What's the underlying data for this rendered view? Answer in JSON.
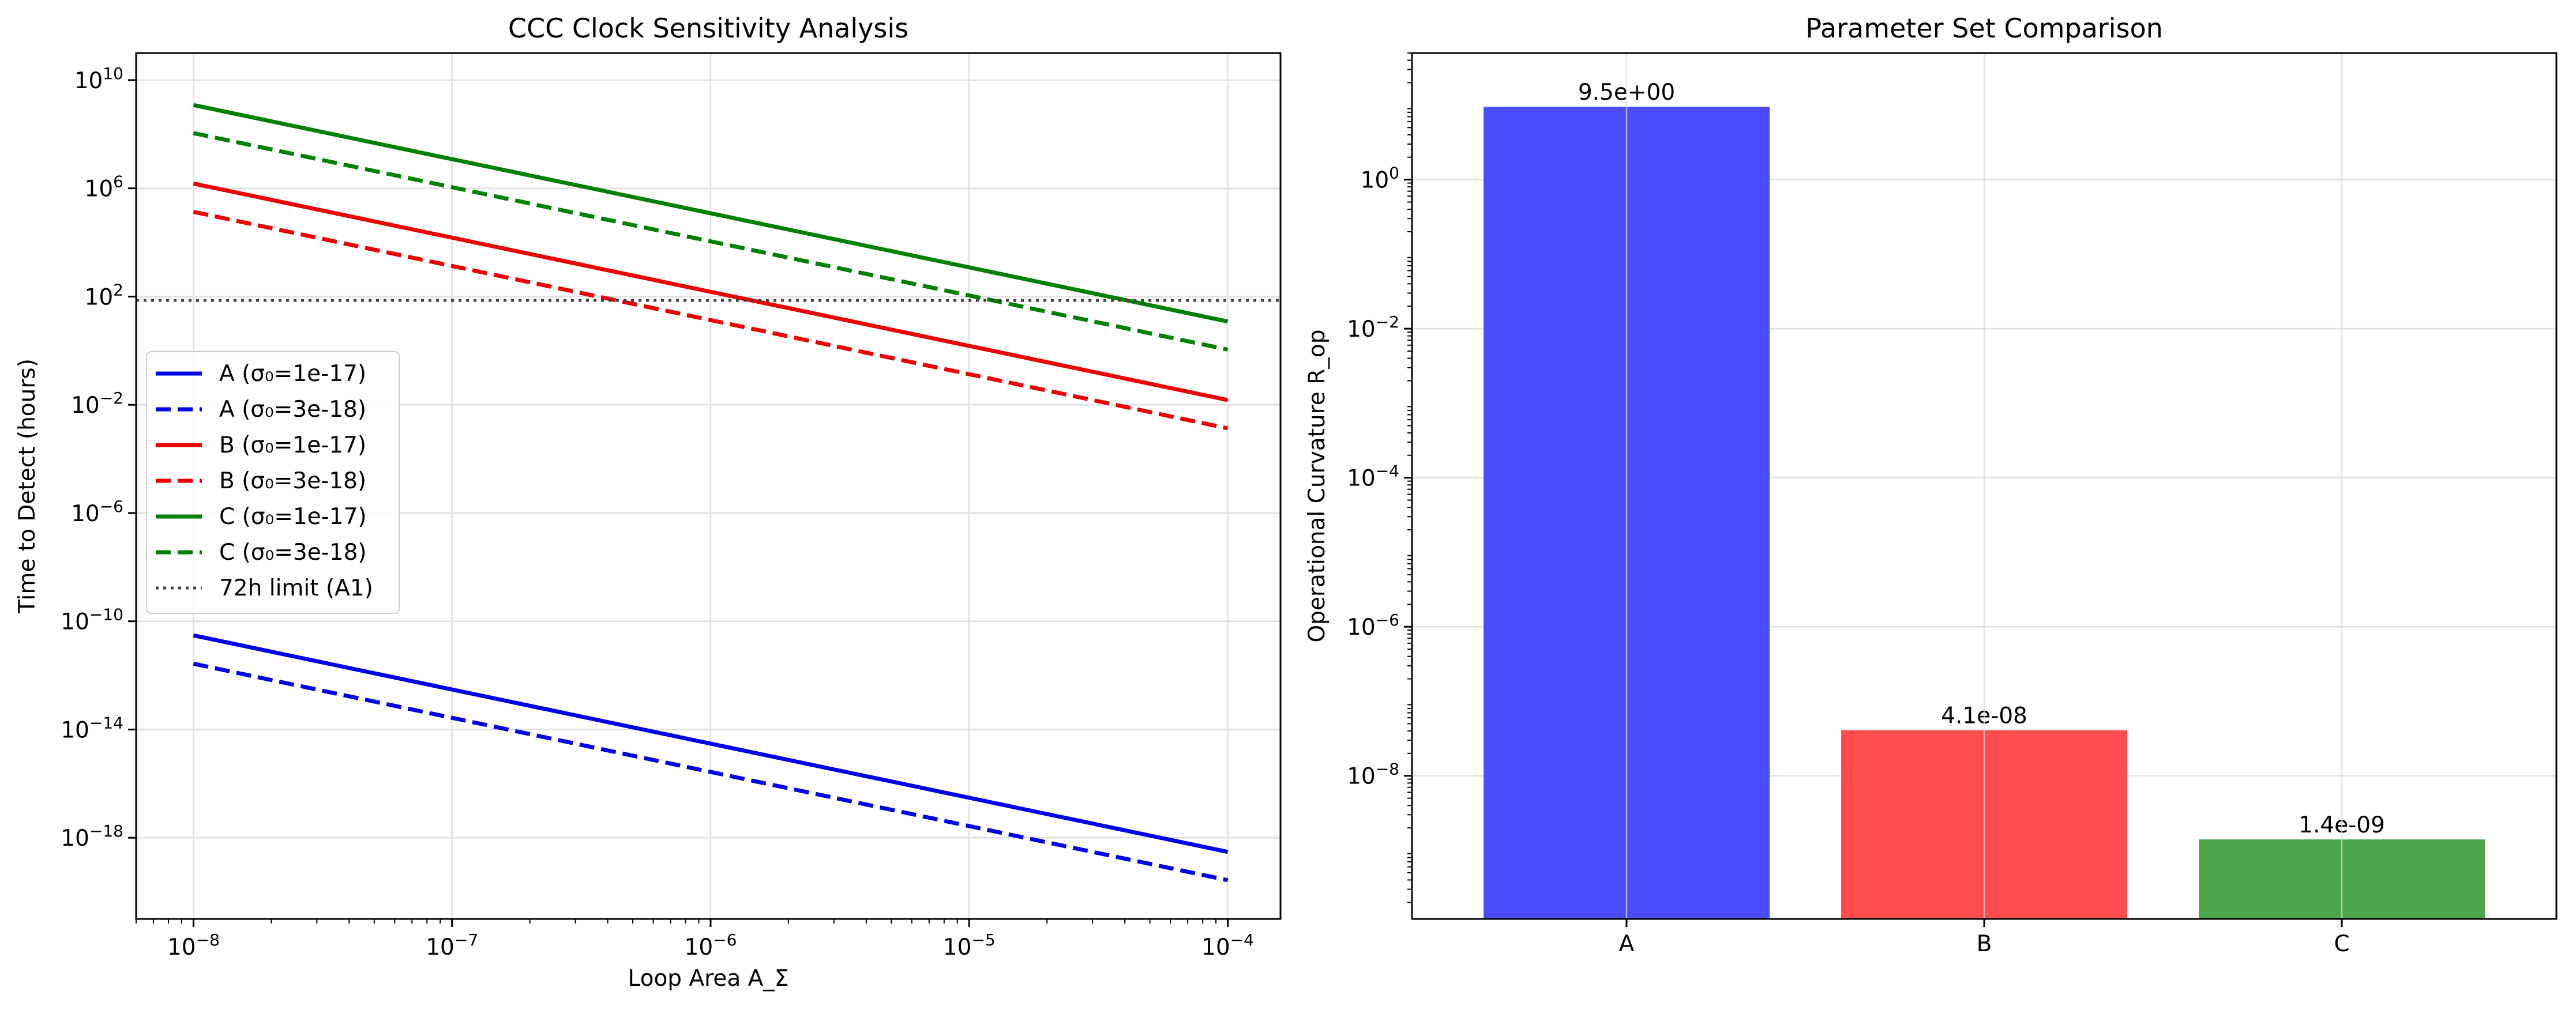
{
  "chart_data": [
    {
      "type": "line",
      "title": "CCC Clock Sensitivity Analysis",
      "xlabel": "Loop Area A_Σ",
      "ylabel": "Time to Detect (hours)",
      "x_scale": "log",
      "y_scale": "log",
      "xlim": [
        6e-09,
        0.00016
      ],
      "ylim": [
        1e-21,
        100000000000.0
      ],
      "grid": true,
      "legend_position": "center-left",
      "x_ticks": [
        {
          "v": 1e-08,
          "base": "10",
          "exp": "−8"
        },
        {
          "v": 1e-07,
          "base": "10",
          "exp": "−7"
        },
        {
          "v": 1e-06,
          "base": "10",
          "exp": "−6"
        },
        {
          "v": 1e-05,
          "base": "10",
          "exp": "−5"
        },
        {
          "v": 0.0001,
          "base": "10",
          "exp": "−4"
        }
      ],
      "y_ticks": [
        {
          "v": 10000000000.0,
          "base": "10",
          "exp": "10"
        },
        {
          "v": 1000000.0,
          "base": "10",
          "exp": "6"
        },
        {
          "v": 100.0,
          "base": "10",
          "exp": "2"
        },
        {
          "v": 0.01,
          "base": "10",
          "exp": "−2"
        },
        {
          "v": 1e-06,
          "base": "10",
          "exp": "−6"
        },
        {
          "v": 1e-10,
          "base": "10",
          "exp": "−10"
        },
        {
          "v": 1e-14,
          "base": "10",
          "exp": "−14"
        },
        {
          "v": 1e-18,
          "base": "10",
          "exp": "−18"
        }
      ],
      "series": [
        {
          "name": "A (σ₀=1e-17)",
          "color": "#0000ee",
          "style": "solid",
          "x": [
            1e-08,
            0.0001
          ],
          "y": [
            3e-11,
            3e-19
          ]
        },
        {
          "name": "A (σ₀=3e-18)",
          "color": "#0000ee",
          "style": "dashed",
          "x": [
            1e-08,
            0.0001
          ],
          "y": [
            2.7e-12,
            2.7e-20
          ]
        },
        {
          "name": "B (σ₀=1e-17)",
          "color": "#ee0000",
          "style": "solid",
          "x": [
            1e-08,
            0.0001
          ],
          "y": [
            1500000.0,
            0.015
          ]
        },
        {
          "name": "B (σ₀=3e-18)",
          "color": "#ee0000",
          "style": "dashed",
          "x": [
            1e-08,
            0.0001
          ],
          "y": [
            135000.0,
            0.00135
          ]
        },
        {
          "name": "C (σ₀=1e-17)",
          "color": "#008000",
          "style": "solid",
          "x": [
            1e-08,
            0.0001
          ],
          "y": [
            1200000000.0,
            12
          ]
        },
        {
          "name": "C (σ₀=3e-18)",
          "color": "#008000",
          "style": "dashed",
          "x": [
            1e-08,
            0.0001
          ],
          "y": [
            110000000.0,
            1.1
          ]
        },
        {
          "name": "72h limit (A1)",
          "color": "#444444",
          "style": "dotted",
          "x": [
            6e-09,
            0.00016
          ],
          "y": [
            72,
            72
          ]
        }
      ]
    },
    {
      "type": "bar",
      "title": "Parameter Set Comparison",
      "xlabel": "",
      "ylabel": "Operational Curvature R_op",
      "y_scale": "log",
      "ylim": [
        1.2e-10,
        50
      ],
      "grid": true,
      "categories": [
        "A",
        "B",
        "C"
      ],
      "values": [
        9.5,
        4.1e-08,
        1.4e-09
      ],
      "labels": [
        "9.5e+00",
        "4.1e-08",
        "1.4e-09"
      ],
      "colors": [
        "#4c4cff",
        "#ff4c4c",
        "#4ca64c"
      ],
      "y_ticks": [
        {
          "v": 1,
          "base": "10",
          "exp": "0"
        },
        {
          "v": 0.01,
          "base": "10",
          "exp": "−2"
        },
        {
          "v": 0.0001,
          "base": "10",
          "exp": "−4"
        },
        {
          "v": 1e-06,
          "base": "10",
          "exp": "−6"
        },
        {
          "v": 1e-08,
          "base": "10",
          "exp": "−8"
        }
      ]
    }
  ]
}
